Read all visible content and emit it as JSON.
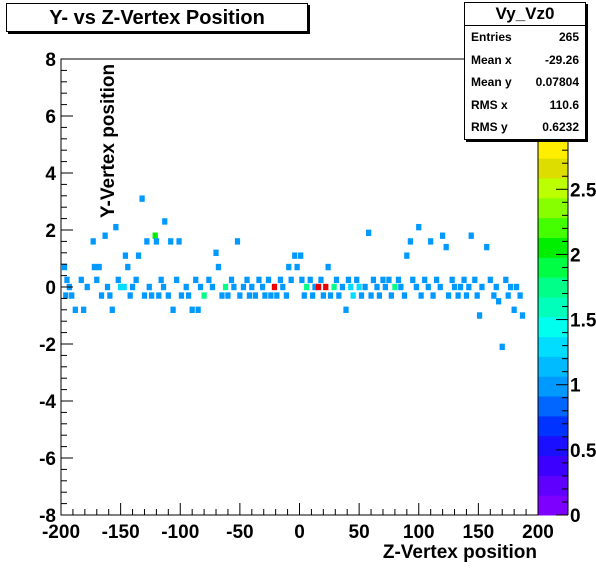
{
  "title": "Y- vs Z-Vertex Position",
  "stats": {
    "name": "Vy_Vz0",
    "rows": [
      {
        "label": "Entries",
        "value": "265"
      },
      {
        "label": "Mean x",
        "value": "-29.26"
      },
      {
        "label": "Mean y",
        "value": "0.07804"
      },
      {
        "label": "RMS x",
        "value": "110.6"
      },
      {
        "label": "RMS y",
        "value": "0.6232"
      }
    ]
  },
  "chart_data": {
    "type": "heatmap",
    "title": "Y- vs Z-Vertex Position",
    "xlabel": "Z-Vertex position",
    "ylabel": "Y-Vertex position",
    "xlim": [
      -200,
      200
    ],
    "ylim": [
      -8,
      8
    ],
    "zlim": [
      0,
      3.5
    ],
    "x_ticks": [
      "-200",
      "-150",
      "-100",
      "-50",
      "0",
      "50",
      "100",
      "150",
      "200"
    ],
    "y_ticks": [
      "-8",
      "-6",
      "-4",
      "-2",
      "0",
      "2",
      "4",
      "6",
      "8"
    ],
    "z_ticks": [
      "0",
      "0.5",
      "1",
      "1.5",
      "2",
      "2.5",
      "3"
    ],
    "palette": [
      "#7d00ff",
      "#5f00ff",
      "#3c00ff",
      "#1a10ff",
      "#0033ff",
      "#0066ff",
      "#0099ff",
      "#00bbff",
      "#00ddff",
      "#00ffee",
      "#00ffbb",
      "#00ff88",
      "#00ff44",
      "#00ee00",
      "#44ff00",
      "#88ff00",
      "#bbff00",
      "#dddd00",
      "#ffee00",
      "#ffbb00",
      "#ff8800",
      "#ff4400",
      "#ee0000"
    ],
    "bins": [
      {
        "z": -197,
        "y": 0.7,
        "c": 1
      },
      {
        "z": -195,
        "y": 0.25,
        "c": 1
      },
      {
        "z": -193,
        "y": 0.0,
        "c": 1
      },
      {
        "z": -196,
        "y": -0.3,
        "c": 1
      },
      {
        "z": -191,
        "y": -0.3,
        "c": 1
      },
      {
        "z": -188,
        "y": -0.8,
        "c": 1
      },
      {
        "z": -183,
        "y": 0.25,
        "c": 1
      },
      {
        "z": -181,
        "y": -0.8,
        "c": 1
      },
      {
        "z": -178,
        "y": 0.0,
        "c": 1
      },
      {
        "z": -173,
        "y": 1.6,
        "c": 1
      },
      {
        "z": -172,
        "y": 0.7,
        "c": 1
      },
      {
        "z": -170,
        "y": 0.25,
        "c": 1
      },
      {
        "z": -168,
        "y": 0.7,
        "c": 1
      },
      {
        "z": -166,
        "y": -0.3,
        "c": 1
      },
      {
        "z": -163,
        "y": 1.8,
        "c": 1
      },
      {
        "z": -161,
        "y": 0.0,
        "c": 1
      },
      {
        "z": -159,
        "y": -0.3,
        "c": 1
      },
      {
        "z": -157,
        "y": -0.8,
        "c": 1
      },
      {
        "z": -154,
        "y": 2.1,
        "c": 1
      },
      {
        "z": -152,
        "y": 0.25,
        "c": 1
      },
      {
        "z": -150,
        "y": 0.0,
        "c": 1.3
      },
      {
        "z": -147,
        "y": 0.0,
        "c": 1.3
      },
      {
        "z": -146,
        "y": 1.1,
        "c": 1
      },
      {
        "z": -144,
        "y": 0.7,
        "c": 1
      },
      {
        "z": -142,
        "y": -0.3,
        "c": 1
      },
      {
        "z": -140,
        "y": 0.0,
        "c": 1
      },
      {
        "z": -137,
        "y": 0.25,
        "c": 1
      },
      {
        "z": -135,
        "y": 1.1,
        "c": 1
      },
      {
        "z": -132,
        "y": 3.1,
        "c": 1
      },
      {
        "z": -130,
        "y": -0.3,
        "c": 1
      },
      {
        "z": -128,
        "y": 1.6,
        "c": 1
      },
      {
        "z": -126,
        "y": 0.0,
        "c": 1
      },
      {
        "z": -124,
        "y": -0.3,
        "c": 1
      },
      {
        "z": -121,
        "y": 1.8,
        "c": 2
      },
      {
        "z": -120,
        "y": 1.6,
        "c": 1
      },
      {
        "z": -118,
        "y": -0.3,
        "c": 1
      },
      {
        "z": -116,
        "y": 0.25,
        "c": 1
      },
      {
        "z": -114,
        "y": 0.0,
        "c": 1
      },
      {
        "z": -113,
        "y": 2.3,
        "c": 1
      },
      {
        "z": -110,
        "y": -0.3,
        "c": 1
      },
      {
        "z": -108,
        "y": 1.6,
        "c": 1
      },
      {
        "z": -106,
        "y": -0.8,
        "c": 1
      },
      {
        "z": -103,
        "y": 0.25,
        "c": 1
      },
      {
        "z": -101,
        "y": 1.6,
        "c": 1
      },
      {
        "z": -99,
        "y": -0.3,
        "c": 1
      },
      {
        "z": -95,
        "y": 0.0,
        "c": 1
      },
      {
        "z": -93,
        "y": -0.3,
        "c": 1
      },
      {
        "z": -90,
        "y": -0.8,
        "c": 1
      },
      {
        "z": -87,
        "y": 0.25,
        "c": 1
      },
      {
        "z": -85,
        "y": -0.8,
        "c": 1
      },
      {
        "z": -83,
        "y": 0.0,
        "c": 1
      },
      {
        "z": -80,
        "y": -0.3,
        "c": 1.8
      },
      {
        "z": -76,
        "y": 0.25,
        "c": 1
      },
      {
        "z": -73,
        "y": 0.0,
        "c": 1
      },
      {
        "z": -70,
        "y": 1.2,
        "c": 1
      },
      {
        "z": -68,
        "y": 0.7,
        "c": 1
      },
      {
        "z": -65,
        "y": -0.3,
        "c": 1
      },
      {
        "z": -62,
        "y": 0.0,
        "c": 1.8
      },
      {
        "z": -60,
        "y": -0.3,
        "c": 1
      },
      {
        "z": -57,
        "y": 0.25,
        "c": 1
      },
      {
        "z": -55,
        "y": 0.0,
        "c": 1
      },
      {
        "z": -52,
        "y": 1.6,
        "c": 1
      },
      {
        "z": -50,
        "y": -0.3,
        "c": 1
      },
      {
        "z": -47,
        "y": 0.0,
        "c": 1
      },
      {
        "z": -44,
        "y": 0.25,
        "c": 1
      },
      {
        "z": -42,
        "y": -0.3,
        "c": 1
      },
      {
        "z": -40,
        "y": 0.0,
        "c": 1
      },
      {
        "z": -37,
        "y": -0.3,
        "c": 1
      },
      {
        "z": -34,
        "y": 0.25,
        "c": 1
      },
      {
        "z": -31,
        "y": 0.0,
        "c": 1
      },
      {
        "z": -29,
        "y": -0.3,
        "c": 1
      },
      {
        "z": -26,
        "y": 0.25,
        "c": 1
      },
      {
        "z": -24,
        "y": -0.3,
        "c": 1
      },
      {
        "z": -21,
        "y": 0.0,
        "c": 3.4
      },
      {
        "z": -19,
        "y": -0.3,
        "c": 1
      },
      {
        "z": -16,
        "y": 0.25,
        "c": 1
      },
      {
        "z": -14,
        "y": 0.0,
        "c": 1
      },
      {
        "z": -11,
        "y": -0.3,
        "c": 1
      },
      {
        "z": -9,
        "y": 0.7,
        "c": 1
      },
      {
        "z": -7,
        "y": 0.25,
        "c": 1
      },
      {
        "z": -4,
        "y": 1.1,
        "c": 1
      },
      {
        "z": -2,
        "y": 0.7,
        "c": 1
      },
      {
        "z": 1,
        "y": 1.1,
        "c": 1
      },
      {
        "z": 2,
        "y": 0.25,
        "c": 1
      },
      {
        "z": 4,
        "y": -0.3,
        "c": 1
      },
      {
        "z": 6,
        "y": 0.0,
        "c": 1.8
      },
      {
        "z": 9,
        "y": 0.25,
        "c": 1
      },
      {
        "z": 11,
        "y": -0.3,
        "c": 1
      },
      {
        "z": 13,
        "y": 0.0,
        "c": 1
      },
      {
        "z": 16,
        "y": 0.0,
        "c": 3.4
      },
      {
        "z": 18,
        "y": 0.25,
        "c": 1
      },
      {
        "z": 20,
        "y": -0.3,
        "c": 1
      },
      {
        "z": 22,
        "y": 0.0,
        "c": 3.4
      },
      {
        "z": 24,
        "y": 0.7,
        "c": 1
      },
      {
        "z": 26,
        "y": -0.3,
        "c": 1
      },
      {
        "z": 29,
        "y": 0.0,
        "c": 1.8
      },
      {
        "z": 31,
        "y": 0.25,
        "c": 1
      },
      {
        "z": 33,
        "y": -0.3,
        "c": 1
      },
      {
        "z": 36,
        "y": 0.0,
        "c": 1
      },
      {
        "z": 39,
        "y": -0.8,
        "c": 1
      },
      {
        "z": 41,
        "y": 0.25,
        "c": 1
      },
      {
        "z": 43,
        "y": 0.0,
        "c": 1.3
      },
      {
        "z": 45,
        "y": -0.3,
        "c": 1.3
      },
      {
        "z": 48,
        "y": 0.25,
        "c": 1
      },
      {
        "z": 50,
        "y": 0.0,
        "c": 1.3
      },
      {
        "z": 52,
        "y": -0.3,
        "c": 1
      },
      {
        "z": 55,
        "y": 0.0,
        "c": 1
      },
      {
        "z": 58,
        "y": 1.9,
        "c": 1
      },
      {
        "z": 60,
        "y": -0.3,
        "c": 1
      },
      {
        "z": 62,
        "y": 0.25,
        "c": 1
      },
      {
        "z": 65,
        "y": 0.0,
        "c": 1
      },
      {
        "z": 67,
        "y": -0.3,
        "c": 1
      },
      {
        "z": 70,
        "y": 0.25,
        "c": 1
      },
      {
        "z": 72,
        "y": 0.0,
        "c": 1
      },
      {
        "z": 75,
        "y": 0.25,
        "c": 1
      },
      {
        "z": 77,
        "y": -0.3,
        "c": 1
      },
      {
        "z": 80,
        "y": 0.0,
        "c": 1.8
      },
      {
        "z": 83,
        "y": 0.25,
        "c": 1
      },
      {
        "z": 85,
        "y": 0.0,
        "c": 1
      },
      {
        "z": 88,
        "y": -0.3,
        "c": 1
      },
      {
        "z": 90,
        "y": 1.1,
        "c": 1
      },
      {
        "z": 93,
        "y": 1.6,
        "c": 1
      },
      {
        "z": 95,
        "y": 0.25,
        "c": 1
      },
      {
        "z": 98,
        "y": 0.0,
        "c": 1
      },
      {
        "z": 100,
        "y": 2.1,
        "c": 1
      },
      {
        "z": 102,
        "y": -0.3,
        "c": 1
      },
      {
        "z": 105,
        "y": 0.25,
        "c": 1
      },
      {
        "z": 108,
        "y": 0.0,
        "c": 1
      },
      {
        "z": 110,
        "y": 1.6,
        "c": 1
      },
      {
        "z": 112,
        "y": -0.3,
        "c": 1
      },
      {
        "z": 115,
        "y": 0.25,
        "c": 1
      },
      {
        "z": 118,
        "y": 0.0,
        "c": 1
      },
      {
        "z": 120,
        "y": 1.8,
        "c": 1
      },
      {
        "z": 123,
        "y": 1.4,
        "c": 1
      },
      {
        "z": 125,
        "y": -0.3,
        "c": 1
      },
      {
        "z": 128,
        "y": 0.25,
        "c": 1
      },
      {
        "z": 130,
        "y": 0.0,
        "c": 1
      },
      {
        "z": 133,
        "y": -0.3,
        "c": 1
      },
      {
        "z": 135,
        "y": 0.0,
        "c": 1
      },
      {
        "z": 138,
        "y": 0.25,
        "c": 1
      },
      {
        "z": 140,
        "y": -0.3,
        "c": 1
      },
      {
        "z": 142,
        "y": 0.0,
        "c": 1
      },
      {
        "z": 144,
        "y": 1.8,
        "c": 1
      },
      {
        "z": 147,
        "y": 0.25,
        "c": 1
      },
      {
        "z": 149,
        "y": -0.3,
        "c": 1
      },
      {
        "z": 151,
        "y": -1.0,
        "c": 1
      },
      {
        "z": 153,
        "y": 0.0,
        "c": 1
      },
      {
        "z": 157,
        "y": 1.4,
        "c": 1
      },
      {
        "z": 160,
        "y": 0.25,
        "c": 1
      },
      {
        "z": 163,
        "y": -0.3,
        "c": 1
      },
      {
        "z": 165,
        "y": 0.0,
        "c": 1
      },
      {
        "z": 167,
        "y": -0.5,
        "c": 1
      },
      {
        "z": 170,
        "y": -2.1,
        "c": 1
      },
      {
        "z": 173,
        "y": 0.25,
        "c": 1
      },
      {
        "z": 175,
        "y": -0.3,
        "c": 1
      },
      {
        "z": 177,
        "y": 0.0,
        "c": 1
      },
      {
        "z": 180,
        "y": -0.8,
        "c": 1
      },
      {
        "z": 182,
        "y": 0.0,
        "c": 1
      },
      {
        "z": 185,
        "y": -0.3,
        "c": 1
      },
      {
        "z": 187,
        "y": -1.0,
        "c": 1
      }
    ]
  }
}
